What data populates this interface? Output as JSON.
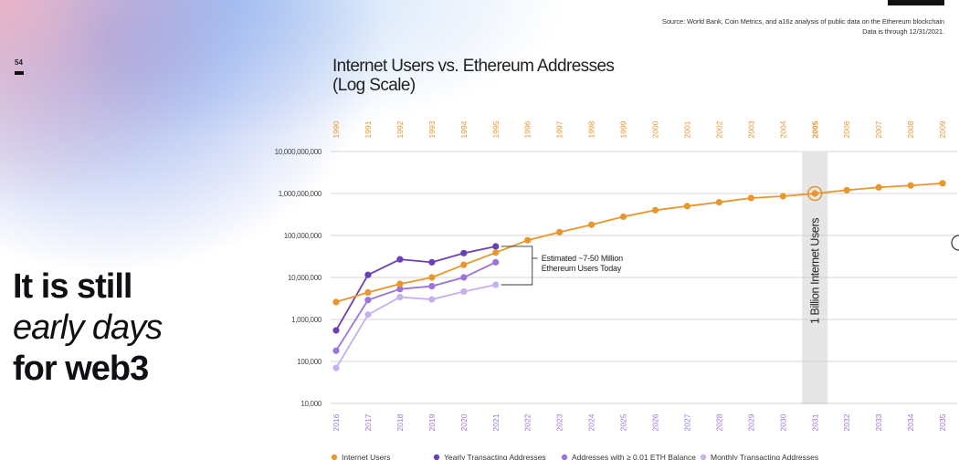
{
  "slide": {
    "page_number": "54",
    "headline_line1": "It is still",
    "headline_line2": "early days",
    "headline_line3": "for web3",
    "source_line1": "Source: World Bank, Coin Metrics, and a16z analysis of public data on the Ethereum blockchain",
    "source_line2": "Data is through 12/31/2021."
  },
  "chart_data": {
    "type": "line",
    "title_line1": "Internet Users vs. Ethereum Addresses",
    "title_line2": "(Log Scale)",
    "log_scale": true,
    "ylim": [
      10000,
      10000000000
    ],
    "y_tick_values": [
      10000000000,
      1000000000,
      100000000,
      10000000,
      1000000,
      100000,
      10000
    ],
    "y_tick_labels": [
      "10,000,000,000",
      "1,000,000,000",
      "100,000,000",
      "10,000,000",
      "1,000,000",
      "100,000",
      "10,000"
    ],
    "top_axis_labels": [
      "1990",
      "1991",
      "1992",
      "1993",
      "1994",
      "1995",
      "1996",
      "1997",
      "1998",
      "1999",
      "2000",
      "2001",
      "2002",
      "2003",
      "2004",
      "2005",
      "2006",
      "2007",
      "2008",
      "2009"
    ],
    "bottom_axis_labels": [
      "2016",
      "2017",
      "2018",
      "2019",
      "2020",
      "2021",
      "2022",
      "2023",
      "2024",
      "2025",
      "2026",
      "2027",
      "2028",
      "2029",
      "2030",
      "2031",
      "2032",
      "2033",
      "2034",
      "2035"
    ],
    "highlight_index": 15,
    "highlight_label": "1 Billion Internet Users",
    "annotation_line1": "Estimated ~7-50 Million",
    "annotation_line2": "Ethereum Users Today",
    "series": [
      {
        "name": "Internet Users",
        "color": "#E8962E",
        "values": [
          2600000,
          4400000,
          7000000,
          10000000,
          20000000,
          39000000,
          77000000,
          120000000,
          180000000,
          280000000,
          400000000,
          500000000,
          620000000,
          780000000,
          860000000,
          1000000000,
          1200000000,
          1400000000,
          1550000000,
          1750000000
        ]
      },
      {
        "name": "Yearly Transacting Addresses",
        "color": "#6B3FB8",
        "values": [
          550000,
          11500000,
          27000000,
          23000000,
          38000000,
          55000000
        ]
      },
      {
        "name": "Addresses with ≥ 0.01 ETH Balance",
        "color": "#9C74DD",
        "values": [
          180000,
          2900000,
          5300000,
          6200000,
          10000000,
          23000000
        ]
      },
      {
        "name": "Monthly Transacting Addresses",
        "color": "#C7B0EE",
        "values": [
          70000,
          1300000,
          3400000,
          3000000,
          4600000,
          6700000
        ]
      }
    ]
  }
}
